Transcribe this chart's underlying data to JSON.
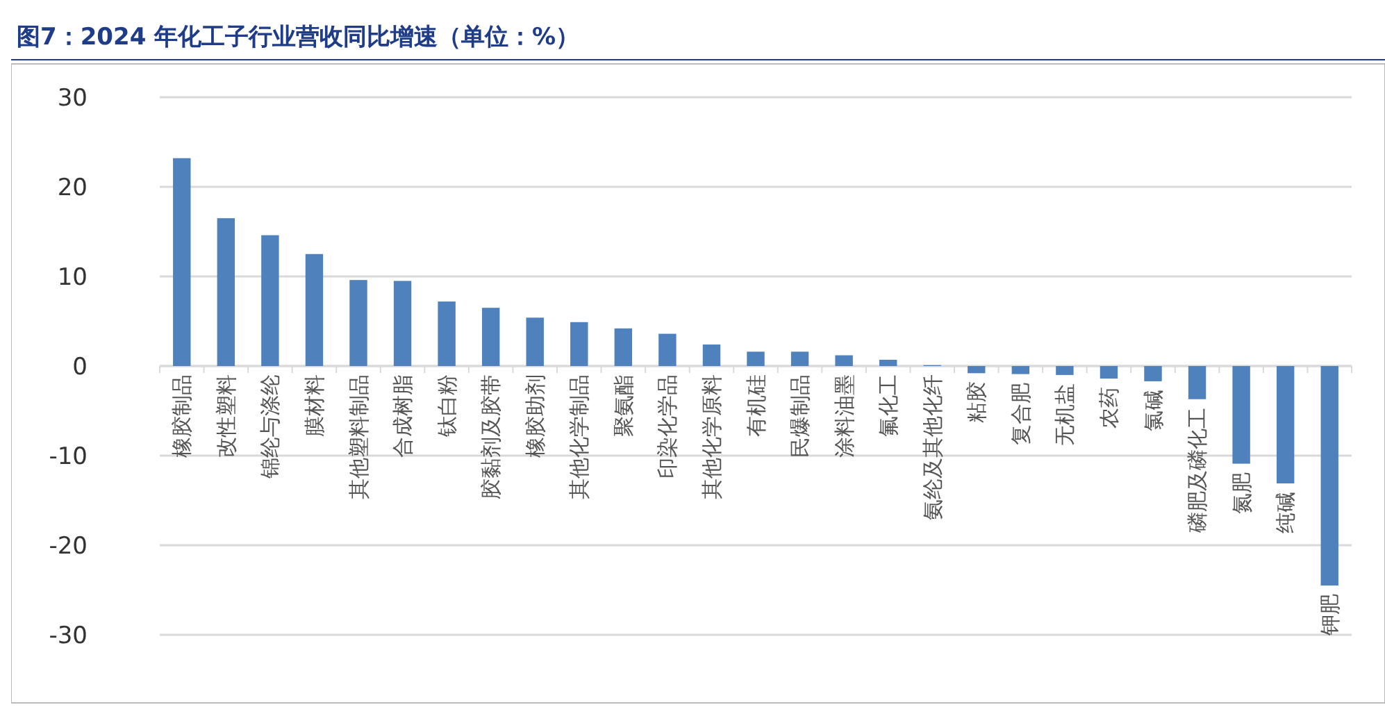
{
  "chart_data": {
    "type": "bar",
    "title": "图7：2024 年化工子行业营收同比增速（单位：%）",
    "categories": [
      "橡胶制品",
      "改性塑料",
      "锦纶与涤纶",
      "膜材料",
      "其他塑料制品",
      "合成树脂",
      "钛白粉",
      "胶黏剂及胶带",
      "橡胶助剂",
      "其他化学制品",
      "聚氨酯",
      "印染化学品",
      "其他化学原料",
      "有机硅",
      "民爆制品",
      "涂料油墨",
      "氟化工",
      "氨纶及其他化纤",
      "粘胶",
      "复合肥",
      "无机盐",
      "农药",
      "氯碱",
      "磷肥及磷化工",
      "氮肥",
      "纯碱",
      "钾肥"
    ],
    "values": [
      23.2,
      16.5,
      14.6,
      12.5,
      9.6,
      9.5,
      7.2,
      6.5,
      5.4,
      4.9,
      4.2,
      3.6,
      2.4,
      1.6,
      1.6,
      1.2,
      0.7,
      0.1,
      -0.8,
      -0.9,
      -1.0,
      -1.4,
      -1.7,
      -3.7,
      -10.9,
      -13.1,
      -24.5
    ],
    "color": "#4f81bd",
    "ylim": [
      -30,
      30
    ],
    "yticks": [
      -30,
      -20,
      -10,
      0,
      10,
      20,
      30
    ],
    "grid": "y"
  }
}
